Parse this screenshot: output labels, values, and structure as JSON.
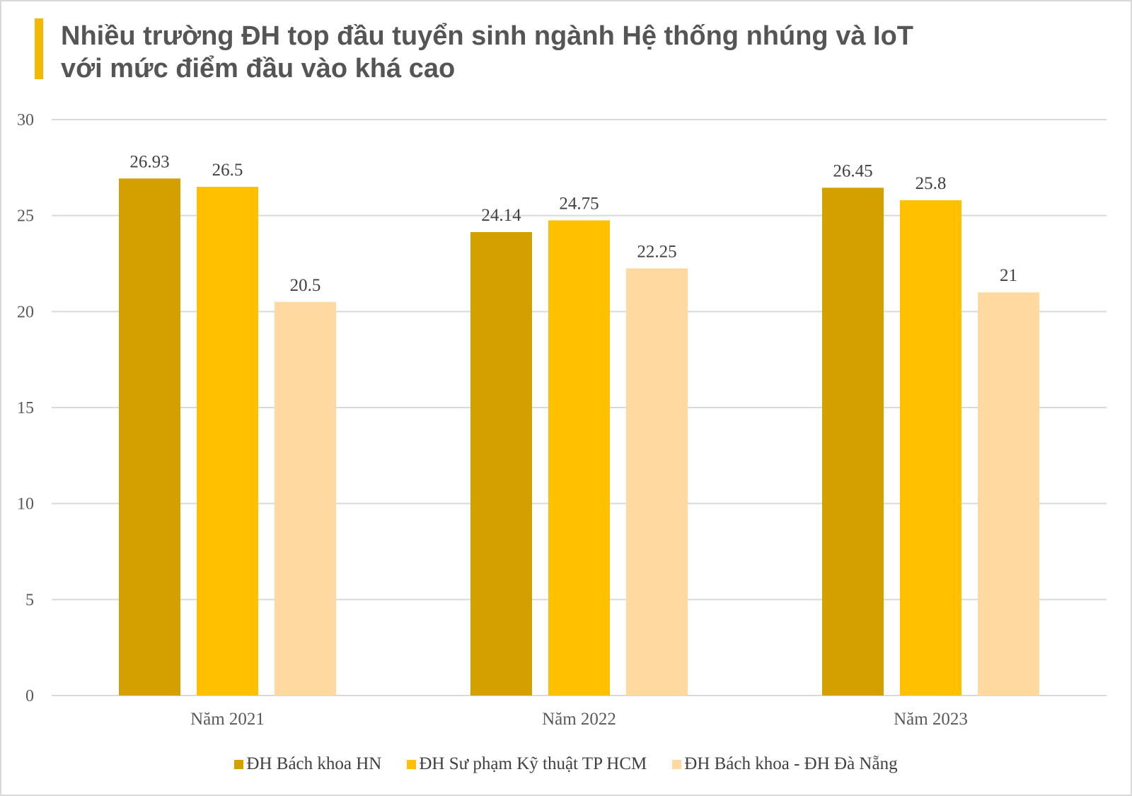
{
  "title_line1": "Nhiều trường ĐH top đầu tuyển sinh ngành Hệ thống nhúng và IoT",
  "title_line2": "với mức điểm đầu vào khá cao",
  "accent_color": "#f5b800",
  "chart_data": {
    "type": "bar",
    "title": "Nhiều trường ĐH top đầu tuyển sinh ngành Hệ thống nhúng và IoT với mức điểm đầu vào khá cao",
    "categories": [
      "Năm 2021",
      "Năm 2022",
      "Năm 2023"
    ],
    "series": [
      {
        "name": "ĐH Bách khoa HN",
        "color": "#d4a000",
        "values": [
          26.93,
          24.14,
          26.45
        ]
      },
      {
        "name": "ĐH Sư phạm Kỹ thuật TP HCM",
        "color": "#ffc000",
        "values": [
          26.5,
          24.75,
          25.8
        ]
      },
      {
        "name": "ĐH Bách khoa - ĐH Đà Nẵng",
        "color": "#ffd9a0",
        "values": [
          20.5,
          22.25,
          21
        ]
      }
    ],
    "ylim": [
      0,
      30
    ],
    "yticks": [
      0,
      5,
      10,
      15,
      20,
      25,
      30
    ],
    "grid": true,
    "legend_position": "bottom",
    "data_labels": true
  }
}
